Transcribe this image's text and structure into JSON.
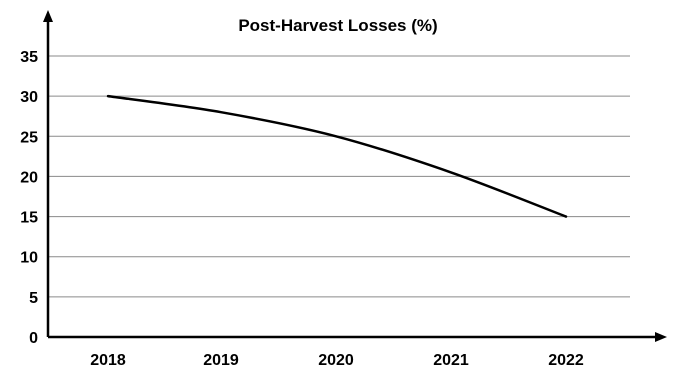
{
  "chart_data": {
    "type": "line",
    "title": "Post-Harvest Losses (%)",
    "xlabel": "",
    "ylabel": "",
    "categories": [
      "2018",
      "2019",
      "2020",
      "2021",
      "2022"
    ],
    "series": [
      {
        "values": [
          30,
          28,
          25,
          20.5,
          15
        ]
      }
    ],
    "ylim": [
      0,
      35
    ],
    "yticks": [
      0,
      5,
      10,
      15,
      20,
      25,
      30,
      35
    ],
    "grid": true,
    "legend": "none",
    "line_color": "#000000",
    "smooth": true
  }
}
